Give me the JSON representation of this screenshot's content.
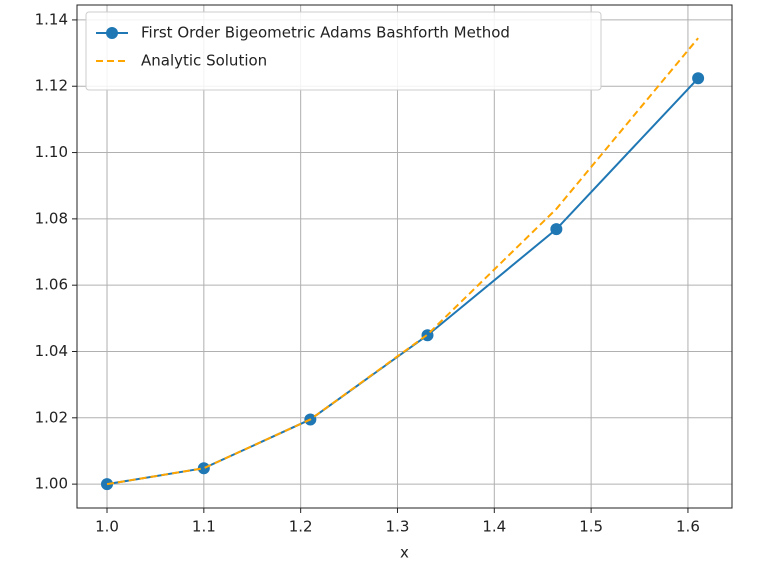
{
  "chart_data": {
    "type": "line",
    "x_label": "x",
    "x": [
      1.0,
      1.1,
      1.21,
      1.331,
      1.4641,
      1.61051
    ],
    "series": [
      {
        "name": "First Order Bigeometric Adams Bashforth Method",
        "color": "#1f77b4",
        "style": "solid",
        "marker": true,
        "values": [
          1.0,
          1.0048,
          1.0195,
          1.0449,
          1.0769,
          1.1224
        ]
      },
      {
        "name": "Analytic Solution",
        "color": "#ffa500",
        "style": "dashed",
        "marker": false,
        "values": [
          1.0,
          1.0048,
          1.0195,
          1.0451,
          1.083,
          1.1345
        ]
      }
    ],
    "xlim": [
      0.969,
      1.6455
    ],
    "ylim": [
      0.9928,
      1.1445
    ],
    "xticks": [
      {
        "value": 1.0,
        "label": "1.0"
      },
      1.1,
      1.2,
      1.3,
      1.4,
      1.5,
      1.6
    ],
    "yticks": [
      {
        "value": 1.0,
        "label": "1.00"
      },
      {
        "value": 1.02,
        "label": "1.02"
      },
      {
        "value": 1.04,
        "label": "1.04"
      },
      {
        "value": 1.06,
        "label": "1.06"
      },
      {
        "value": 1.08,
        "label": "1.08"
      },
      {
        "value": 1.1,
        "label": "1.10"
      },
      {
        "value": 1.12,
        "label": "1.12"
      },
      {
        "value": 1.14,
        "label": "1.14"
      }
    ],
    "grid": true,
    "legend": "upper-left"
  }
}
